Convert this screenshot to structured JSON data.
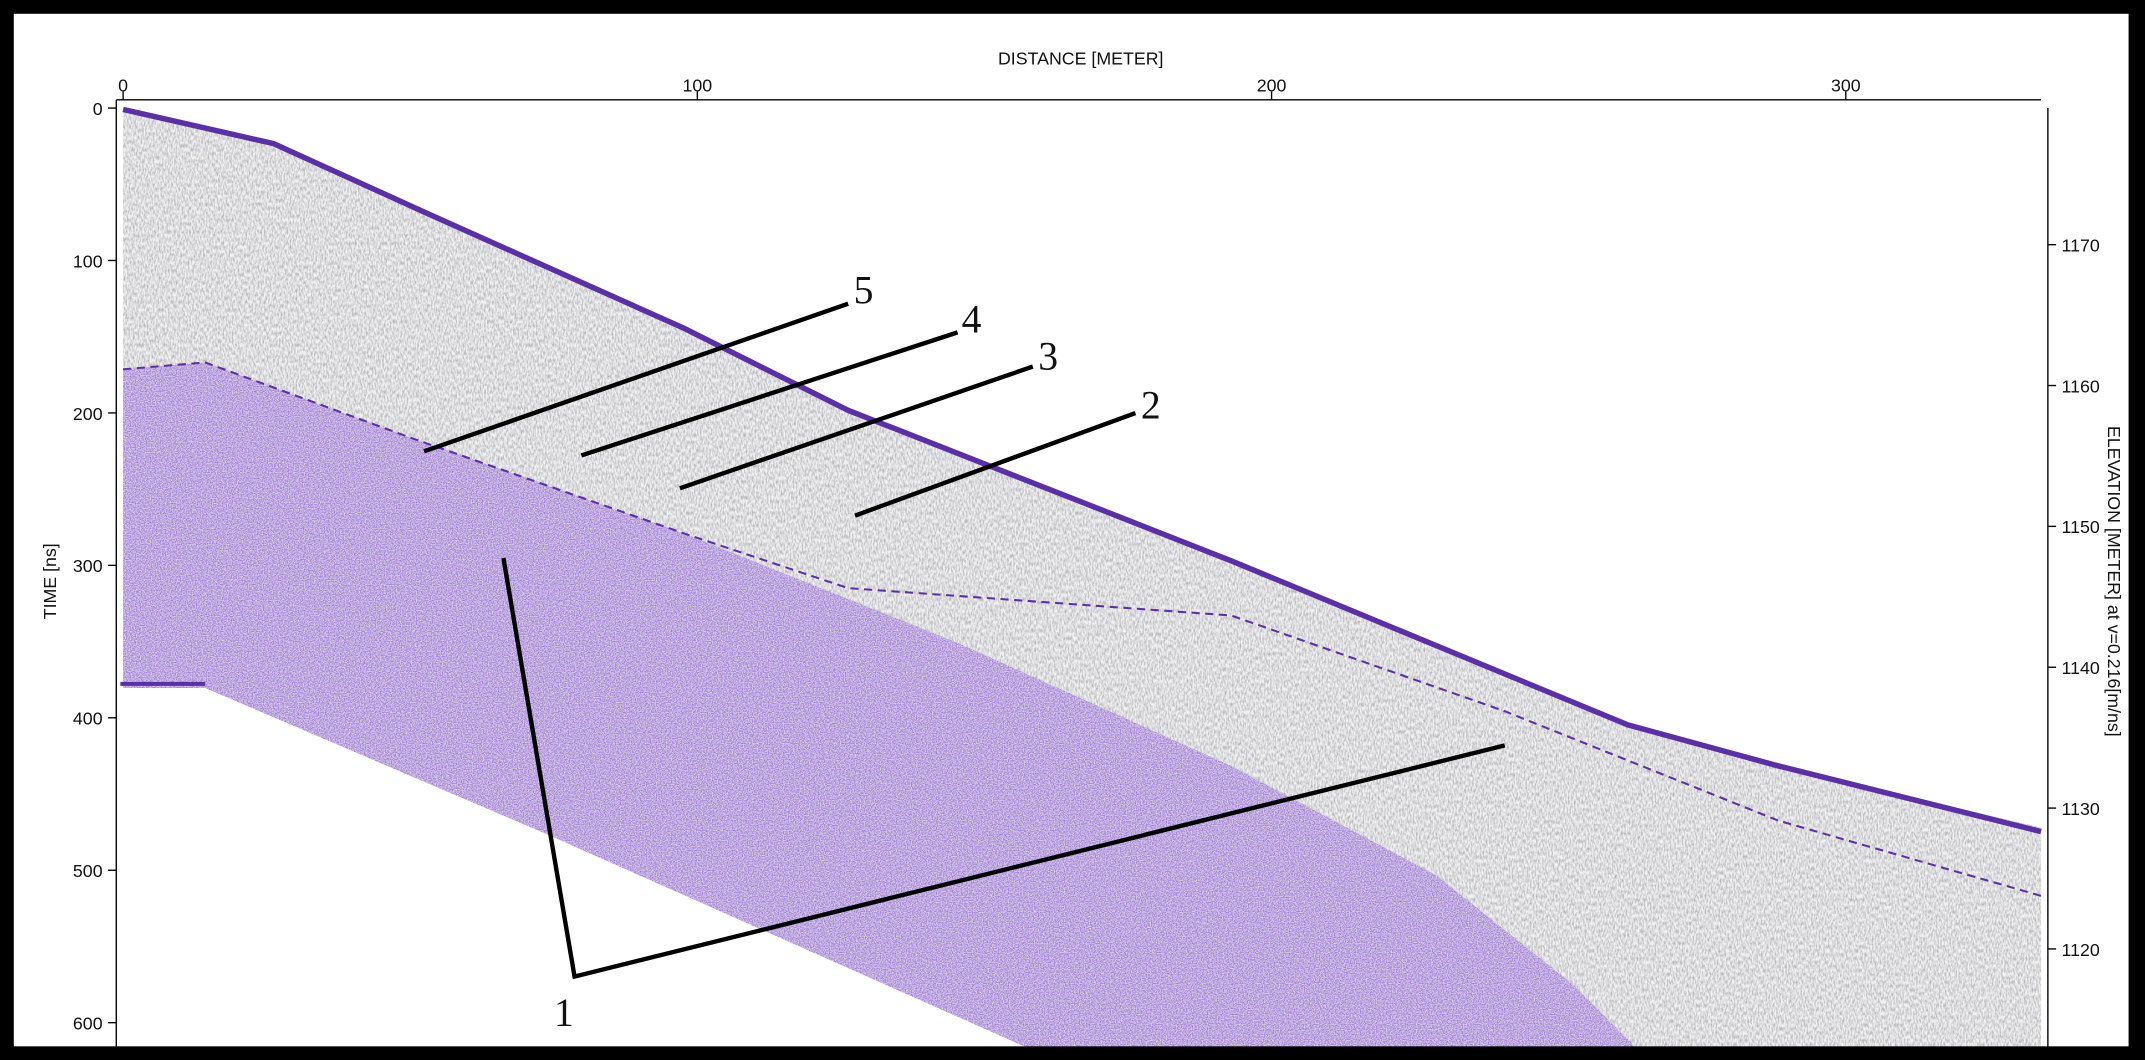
{
  "chart_data": {
    "type": "radargram",
    "x_label": "DISTANCE [METER]",
    "y_label": "TIME [ns]",
    "y2_label": "ELEVATION [METER] at v=0.216[m/ns]",
    "xlim": [
      0,
      334
    ],
    "xticks": [
      0,
      100,
      200,
      300
    ],
    "ylim": [
      0,
      620
    ],
    "y_inverted": true,
    "yticks": [
      0,
      100,
      200,
      300,
      400,
      500,
      600
    ],
    "y2lim": [
      1112.6,
      1179.7
    ],
    "y2ticks": [
      1120,
      1130,
      1140,
      1150,
      1160,
      1170
    ],
    "annotations": [
      "5",
      "4",
      "3",
      "2",
      "1"
    ],
    "color": "#5b2fa8"
  }
}
